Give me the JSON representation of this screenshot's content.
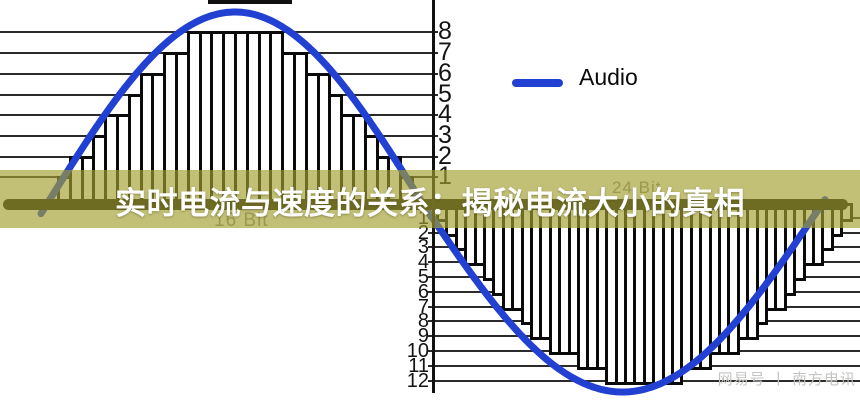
{
  "title": "实时电流与速度的关系：揭秘电流大小的真相",
  "watermark": "网易号 丨 南方电讯",
  "legend": {
    "label": "Audio",
    "color": "#2240d2",
    "position": "top-right"
  },
  "colors": {
    "curve_blue": "#2240d2",
    "banner_overlay": "rgba(163,158,48,0.66)",
    "grid": "#2b2b2b",
    "bar_border": "#0a0a0a",
    "background": "#ffffff",
    "title_text": "#ffffff",
    "bit_label_gray": "#8d8d8d",
    "watermark_gray": "#c6c4c1"
  },
  "chart_data": [
    {
      "type": "line",
      "name": "audio-sine-wave",
      "legend_entry": "Audio",
      "description": "one full sine cycle: positive half-cycle on left of center axis, negative half-cycle on right",
      "amplitude_levels_positive": 8,
      "amplitude_levels_negative": 12,
      "grid": "on"
    },
    {
      "type": "bar",
      "name": "quantization-staircase-16bit",
      "bit_depth_label": "16 Bit",
      "y_ticks": [
        "8",
        "7",
        "6",
        "5",
        "4",
        "3",
        "2",
        "1"
      ],
      "ylim": [
        0,
        8
      ],
      "quantized_levels": [
        1,
        2,
        2,
        3,
        4,
        4,
        5,
        6,
        6,
        7,
        7,
        8,
        8,
        8,
        8,
        8,
        8,
        8,
        8,
        7,
        7,
        6,
        6,
        5,
        4,
        4,
        3,
        2,
        2,
        1
      ]
    },
    {
      "type": "bar",
      "name": "quantization-staircase-24bit",
      "bit_depth_label": "24 Bit",
      "y_ticks": [
        "1",
        "2",
        "3",
        "4",
        "5",
        "6",
        "7",
        "8",
        "9",
        "10",
        "11",
        "12"
      ],
      "ylim": [
        0,
        -12
      ],
      "quantized_levels": [
        1,
        2,
        3,
        4,
        4,
        5,
        6,
        7,
        7,
        8,
        9,
        9,
        10,
        10,
        10,
        11,
        11,
        11,
        12,
        12,
        12,
        12,
        12,
        12,
        12,
        12,
        11,
        11,
        11,
        10,
        10,
        10,
        9,
        9,
        8,
        7,
        7,
        6,
        5,
        4,
        4,
        3,
        2,
        1
      ]
    }
  ]
}
